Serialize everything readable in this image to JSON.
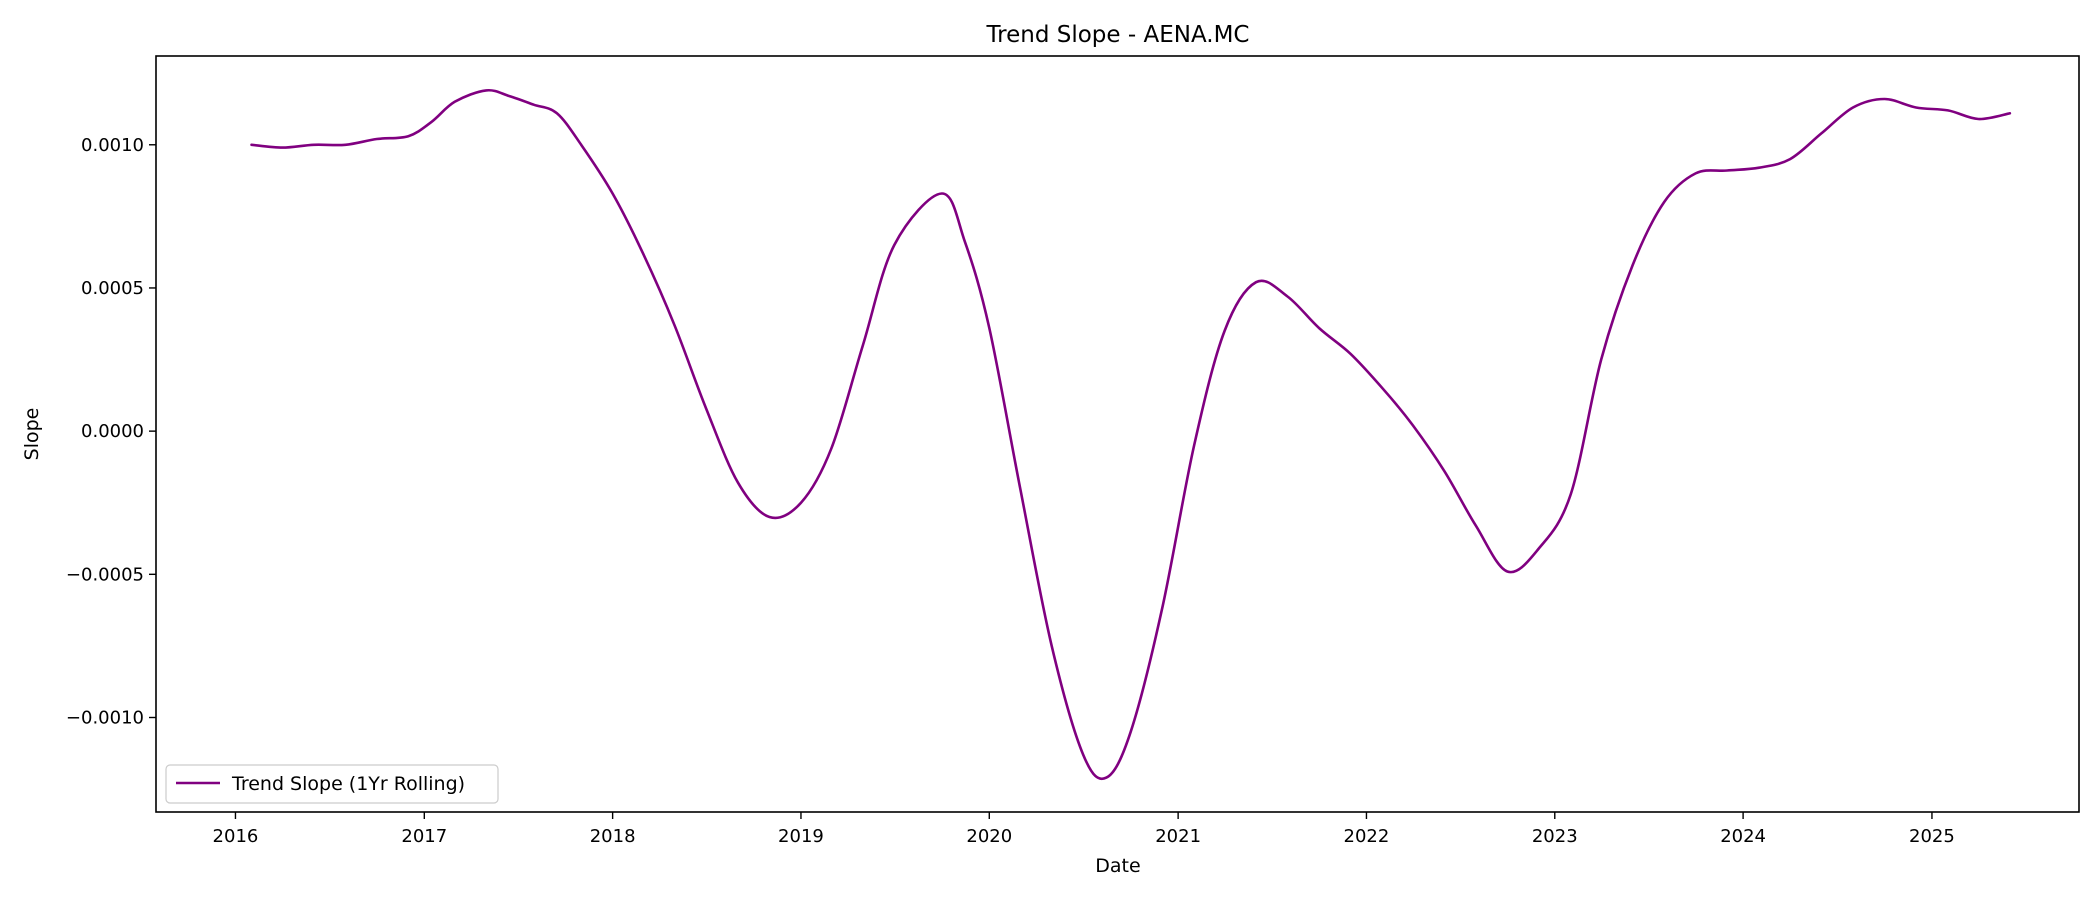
{
  "chart_data": {
    "type": "line",
    "title": "Trend Slope - AENA.MC",
    "xlabel": "Date",
    "ylabel": "Slope",
    "x_ticks": [
      "2016",
      "2017",
      "2018",
      "2019",
      "2020",
      "2021",
      "2022",
      "2023",
      "2024",
      "2025"
    ],
    "y_ticks": [
      "−0.0010",
      "−0.0005",
      "0.0000",
      "0.0005",
      "0.0010"
    ],
    "y_tick_values": [
      -0.001,
      -0.0005,
      0.0,
      0.0005,
      0.001
    ],
    "xlim": [
      "2015-07-31",
      "2025-10-13"
    ],
    "ylim": [
      -0.00133,
      0.00131
    ],
    "grid": false,
    "legend": {
      "position": "lower-left",
      "entries": [
        "Trend Slope (1Yr Rolling)"
      ]
    },
    "series": [
      {
        "name": "Trend Slope (1Yr Rolling)",
        "color": "#800080",
        "points": [
          [
            "2016-02-01",
            0.001
          ],
          [
            "2016-04-01",
            0.00099
          ],
          [
            "2016-06-01",
            0.001
          ],
          [
            "2016-08-01",
            0.001
          ],
          [
            "2016-10-01",
            0.00102
          ],
          [
            "2016-12-01",
            0.00103
          ],
          [
            "2017-01-15",
            0.00108
          ],
          [
            "2017-03-01",
            0.00115
          ],
          [
            "2017-05-01",
            0.00119
          ],
          [
            "2017-06-15",
            0.00117
          ],
          [
            "2017-08-01",
            0.00114
          ],
          [
            "2017-09-15",
            0.00111
          ],
          [
            "2017-11-01",
            0.001
          ],
          [
            "2018-01-01",
            0.00083
          ],
          [
            "2018-03-01",
            0.00062
          ],
          [
            "2018-05-01",
            0.00037
          ],
          [
            "2018-07-01",
            8e-05
          ],
          [
            "2018-09-01",
            -0.00018
          ],
          [
            "2018-11-01",
            -0.0003
          ],
          [
            "2019-01-01",
            -0.00025
          ],
          [
            "2019-03-01",
            -6e-05
          ],
          [
            "2019-05-01",
            0.0003
          ],
          [
            "2019-07-01",
            0.00065
          ],
          [
            "2019-10-01",
            0.00083
          ],
          [
            "2019-11-15",
            0.00066
          ],
          [
            "2020-01-01",
            0.00036
          ],
          [
            "2020-03-01",
            -0.0002
          ],
          [
            "2020-05-01",
            -0.00075
          ],
          [
            "2020-07-01",
            -0.00113
          ],
          [
            "2020-08-15",
            -0.00121
          ],
          [
            "2020-10-01",
            -0.00105
          ],
          [
            "2020-12-01",
            -0.00062
          ],
          [
            "2021-02-01",
            -5e-05
          ],
          [
            "2021-04-01",
            0.00035
          ],
          [
            "2021-06-01",
            0.00052
          ],
          [
            "2021-08-01",
            0.00047
          ],
          [
            "2021-10-01",
            0.00036
          ],
          [
            "2021-12-01",
            0.00027
          ],
          [
            "2022-02-01",
            0.00015
          ],
          [
            "2022-04-01",
            2e-05
          ],
          [
            "2022-06-01",
            -0.00014
          ],
          [
            "2022-08-01",
            -0.00033
          ],
          [
            "2022-10-01",
            -0.00049
          ],
          [
            "2022-12-01",
            -0.00041
          ],
          [
            "2023-02-01",
            -0.00022
          ],
          [
            "2023-04-01",
            0.00025
          ],
          [
            "2023-06-01",
            0.00058
          ],
          [
            "2023-08-01",
            0.0008
          ],
          [
            "2023-10-01",
            0.0009
          ],
          [
            "2023-12-01",
            0.00091
          ],
          [
            "2024-02-01",
            0.00092
          ],
          [
            "2024-04-01",
            0.00095
          ],
          [
            "2024-06-01",
            0.00104
          ],
          [
            "2024-08-01",
            0.00113
          ],
          [
            "2024-10-01",
            0.00116
          ],
          [
            "2024-12-01",
            0.00113
          ],
          [
            "2025-02-01",
            0.00112
          ],
          [
            "2025-04-01",
            0.00109
          ],
          [
            "2025-06-01",
            0.00111
          ]
        ]
      }
    ]
  }
}
